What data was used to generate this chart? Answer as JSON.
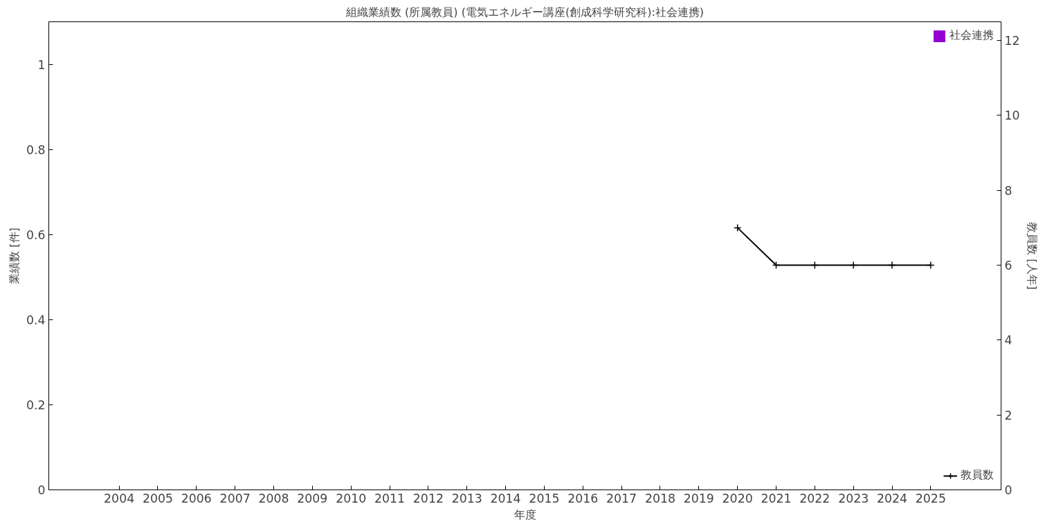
{
  "chart_data": {
    "type": "bar",
    "title": "組織業績数 (所属教員) (電気エネルギー講座(創成科学研究科):社会連携)",
    "xlabel": "年度",
    "ylabel": "業績数 [件]",
    "y2label": "教員数 [人年]",
    "categories": [
      "2004",
      "2005",
      "2006",
      "2007",
      "2008",
      "2009",
      "2010",
      "2011",
      "2012",
      "2013",
      "2014",
      "2015",
      "2016",
      "2017",
      "2018",
      "2019",
      "2020",
      "2021",
      "2022",
      "2023",
      "2024",
      "2025"
    ],
    "series": [
      {
        "name": "社会連携",
        "color": "#9400d3",
        "values": [
          null,
          null,
          null,
          null,
          null,
          null,
          null,
          null,
          null,
          null,
          null,
          null,
          null,
          null,
          null,
          null,
          0,
          0,
          0,
          0,
          0,
          0
        ]
      },
      {
        "name": "教員数",
        "type": "line",
        "axis": "y2",
        "color": "#000000",
        "marker": "cross",
        "values": [
          null,
          null,
          null,
          null,
          null,
          null,
          null,
          null,
          null,
          null,
          null,
          null,
          null,
          null,
          null,
          null,
          7,
          6,
          6,
          6,
          6,
          6
        ]
      }
    ],
    "ylim": [
      0,
      1.1
    ],
    "yticks": [
      0,
      0.2,
      0.4,
      0.6,
      0.8,
      1
    ],
    "y2lim": [
      0,
      12.5
    ],
    "y2ticks": [
      0,
      2,
      4,
      6,
      8,
      10,
      12
    ],
    "grid": false,
    "legend": "right"
  }
}
